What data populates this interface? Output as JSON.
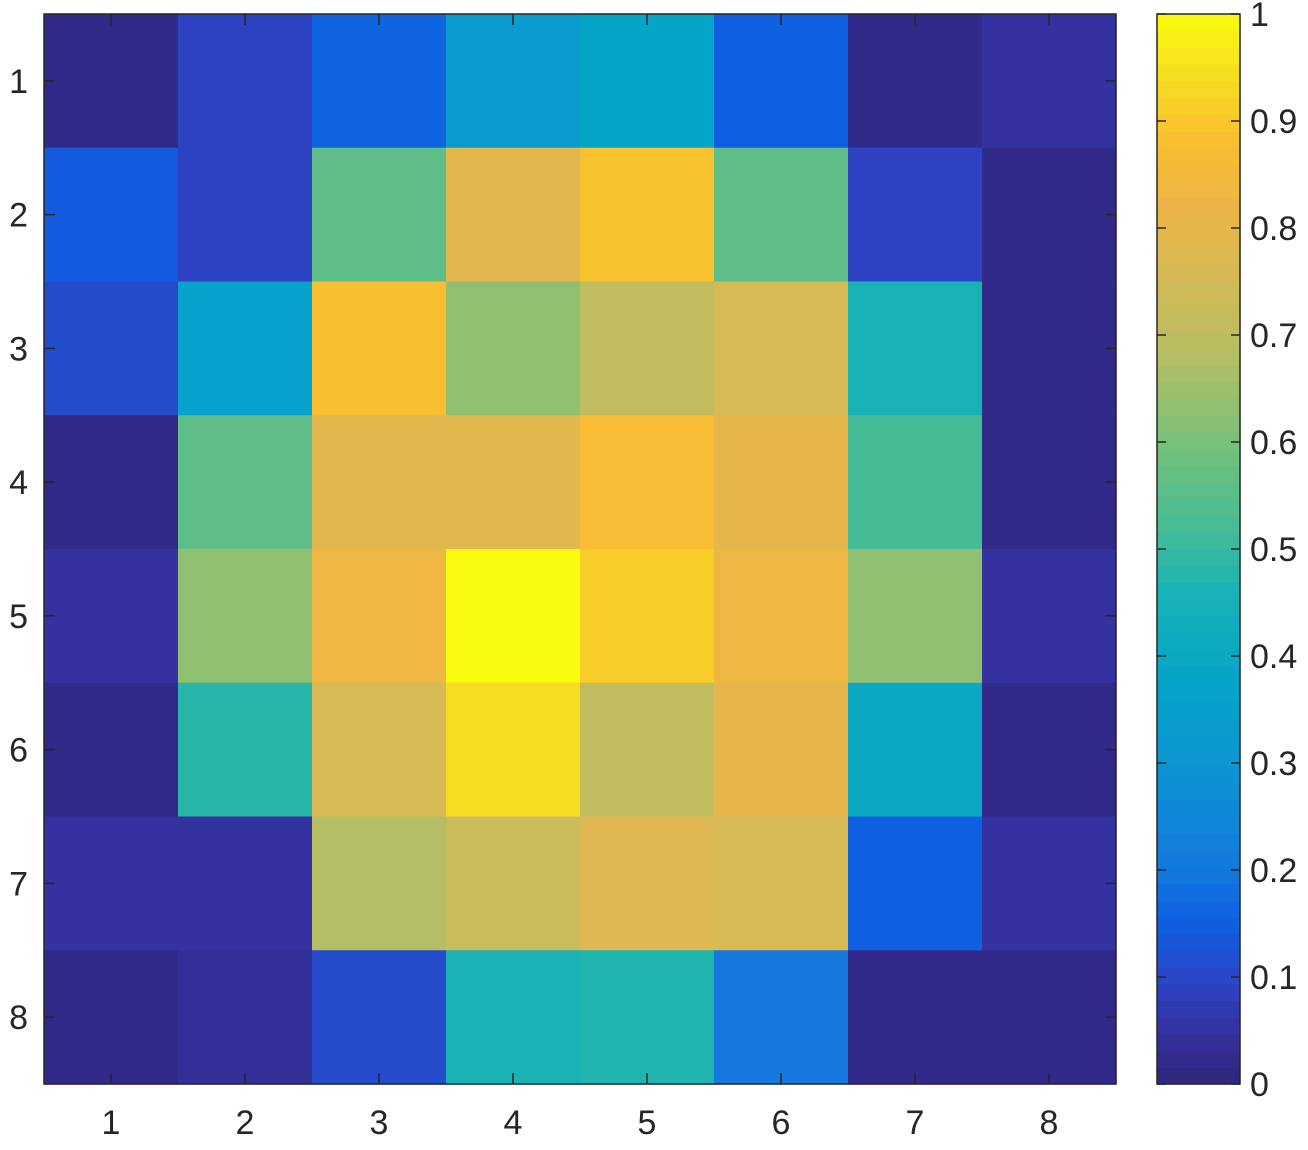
{
  "chart_data": {
    "type": "heatmap",
    "title": "",
    "xlabel": "",
    "ylabel": "",
    "x_categories": [
      "1",
      "2",
      "3",
      "4",
      "5",
      "6",
      "7",
      "8"
    ],
    "y_categories": [
      "1",
      "2",
      "3",
      "4",
      "5",
      "6",
      "7",
      "8"
    ],
    "values": [
      [
        0.02,
        0.09,
        0.16,
        0.33,
        0.38,
        0.15,
        0.02,
        0.05
      ],
      [
        0.14,
        0.09,
        0.56,
        0.79,
        0.89,
        0.56,
        0.09,
        0.02
      ],
      [
        0.11,
        0.36,
        0.88,
        0.63,
        0.71,
        0.76,
        0.46,
        0.02
      ],
      [
        0.02,
        0.56,
        0.79,
        0.79,
        0.87,
        0.8,
        0.52,
        0.02
      ],
      [
        0.05,
        0.63,
        0.83,
        1.0,
        0.91,
        0.83,
        0.63,
        0.05
      ],
      [
        0.02,
        0.48,
        0.76,
        0.94,
        0.71,
        0.8,
        0.4,
        0.02
      ],
      [
        0.05,
        0.05,
        0.68,
        0.73,
        0.78,
        0.76,
        0.15,
        0.05
      ],
      [
        0.02,
        0.04,
        0.11,
        0.46,
        0.47,
        0.2,
        0.02,
        0.02
      ]
    ],
    "clim": [
      0,
      1
    ],
    "colormap": "parula",
    "colorbar": {
      "location": "right",
      "ticks": [
        "0",
        "0.1",
        "0.2",
        "0.3",
        "0.4",
        "0.5",
        "0.6",
        "0.7",
        "0.8",
        "0.9",
        "1"
      ]
    },
    "grid": false
  }
}
